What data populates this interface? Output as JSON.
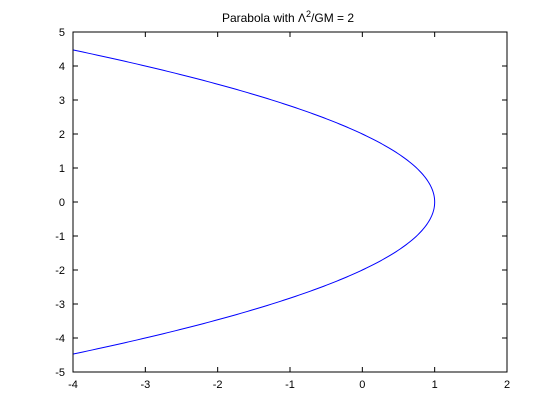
{
  "chart_data": {
    "type": "line",
    "title": {
      "prefix": "Parabola with ",
      "symbol": "Λ",
      "superscript": "2",
      "suffix": "/GM = 2"
    },
    "xlabel": "",
    "ylabel": "",
    "xlim": [
      -4,
      2
    ],
    "ylim": [
      -5,
      5
    ],
    "x_ticks": [
      -4,
      -3,
      -2,
      -1,
      0,
      1,
      2
    ],
    "y_ticks": [
      -5,
      -4,
      -3,
      -2,
      -1,
      0,
      1,
      2,
      3,
      4,
      5
    ],
    "grid": false,
    "series": [
      {
        "name": "parabola",
        "color": "#0000ff",
        "equation": "x = 1 - y^2/4",
        "y_range": [
          -4.47,
          4.47
        ],
        "x": [
          -4.0,
          -3.0,
          -2.0,
          -1.0,
          0.0,
          0.5,
          0.75,
          1.0,
          0.75,
          0.5,
          0.0,
          -1.0,
          -2.0,
          -3.0,
          -4.0
        ],
        "y": [
          4.47,
          4.0,
          3.46,
          2.83,
          2.0,
          1.41,
          1.0,
          0.0,
          -1.0,
          -1.41,
          -2.0,
          -2.83,
          -3.46,
          -4.0,
          -4.47
        ]
      }
    ],
    "axis_color": "#000000"
  }
}
